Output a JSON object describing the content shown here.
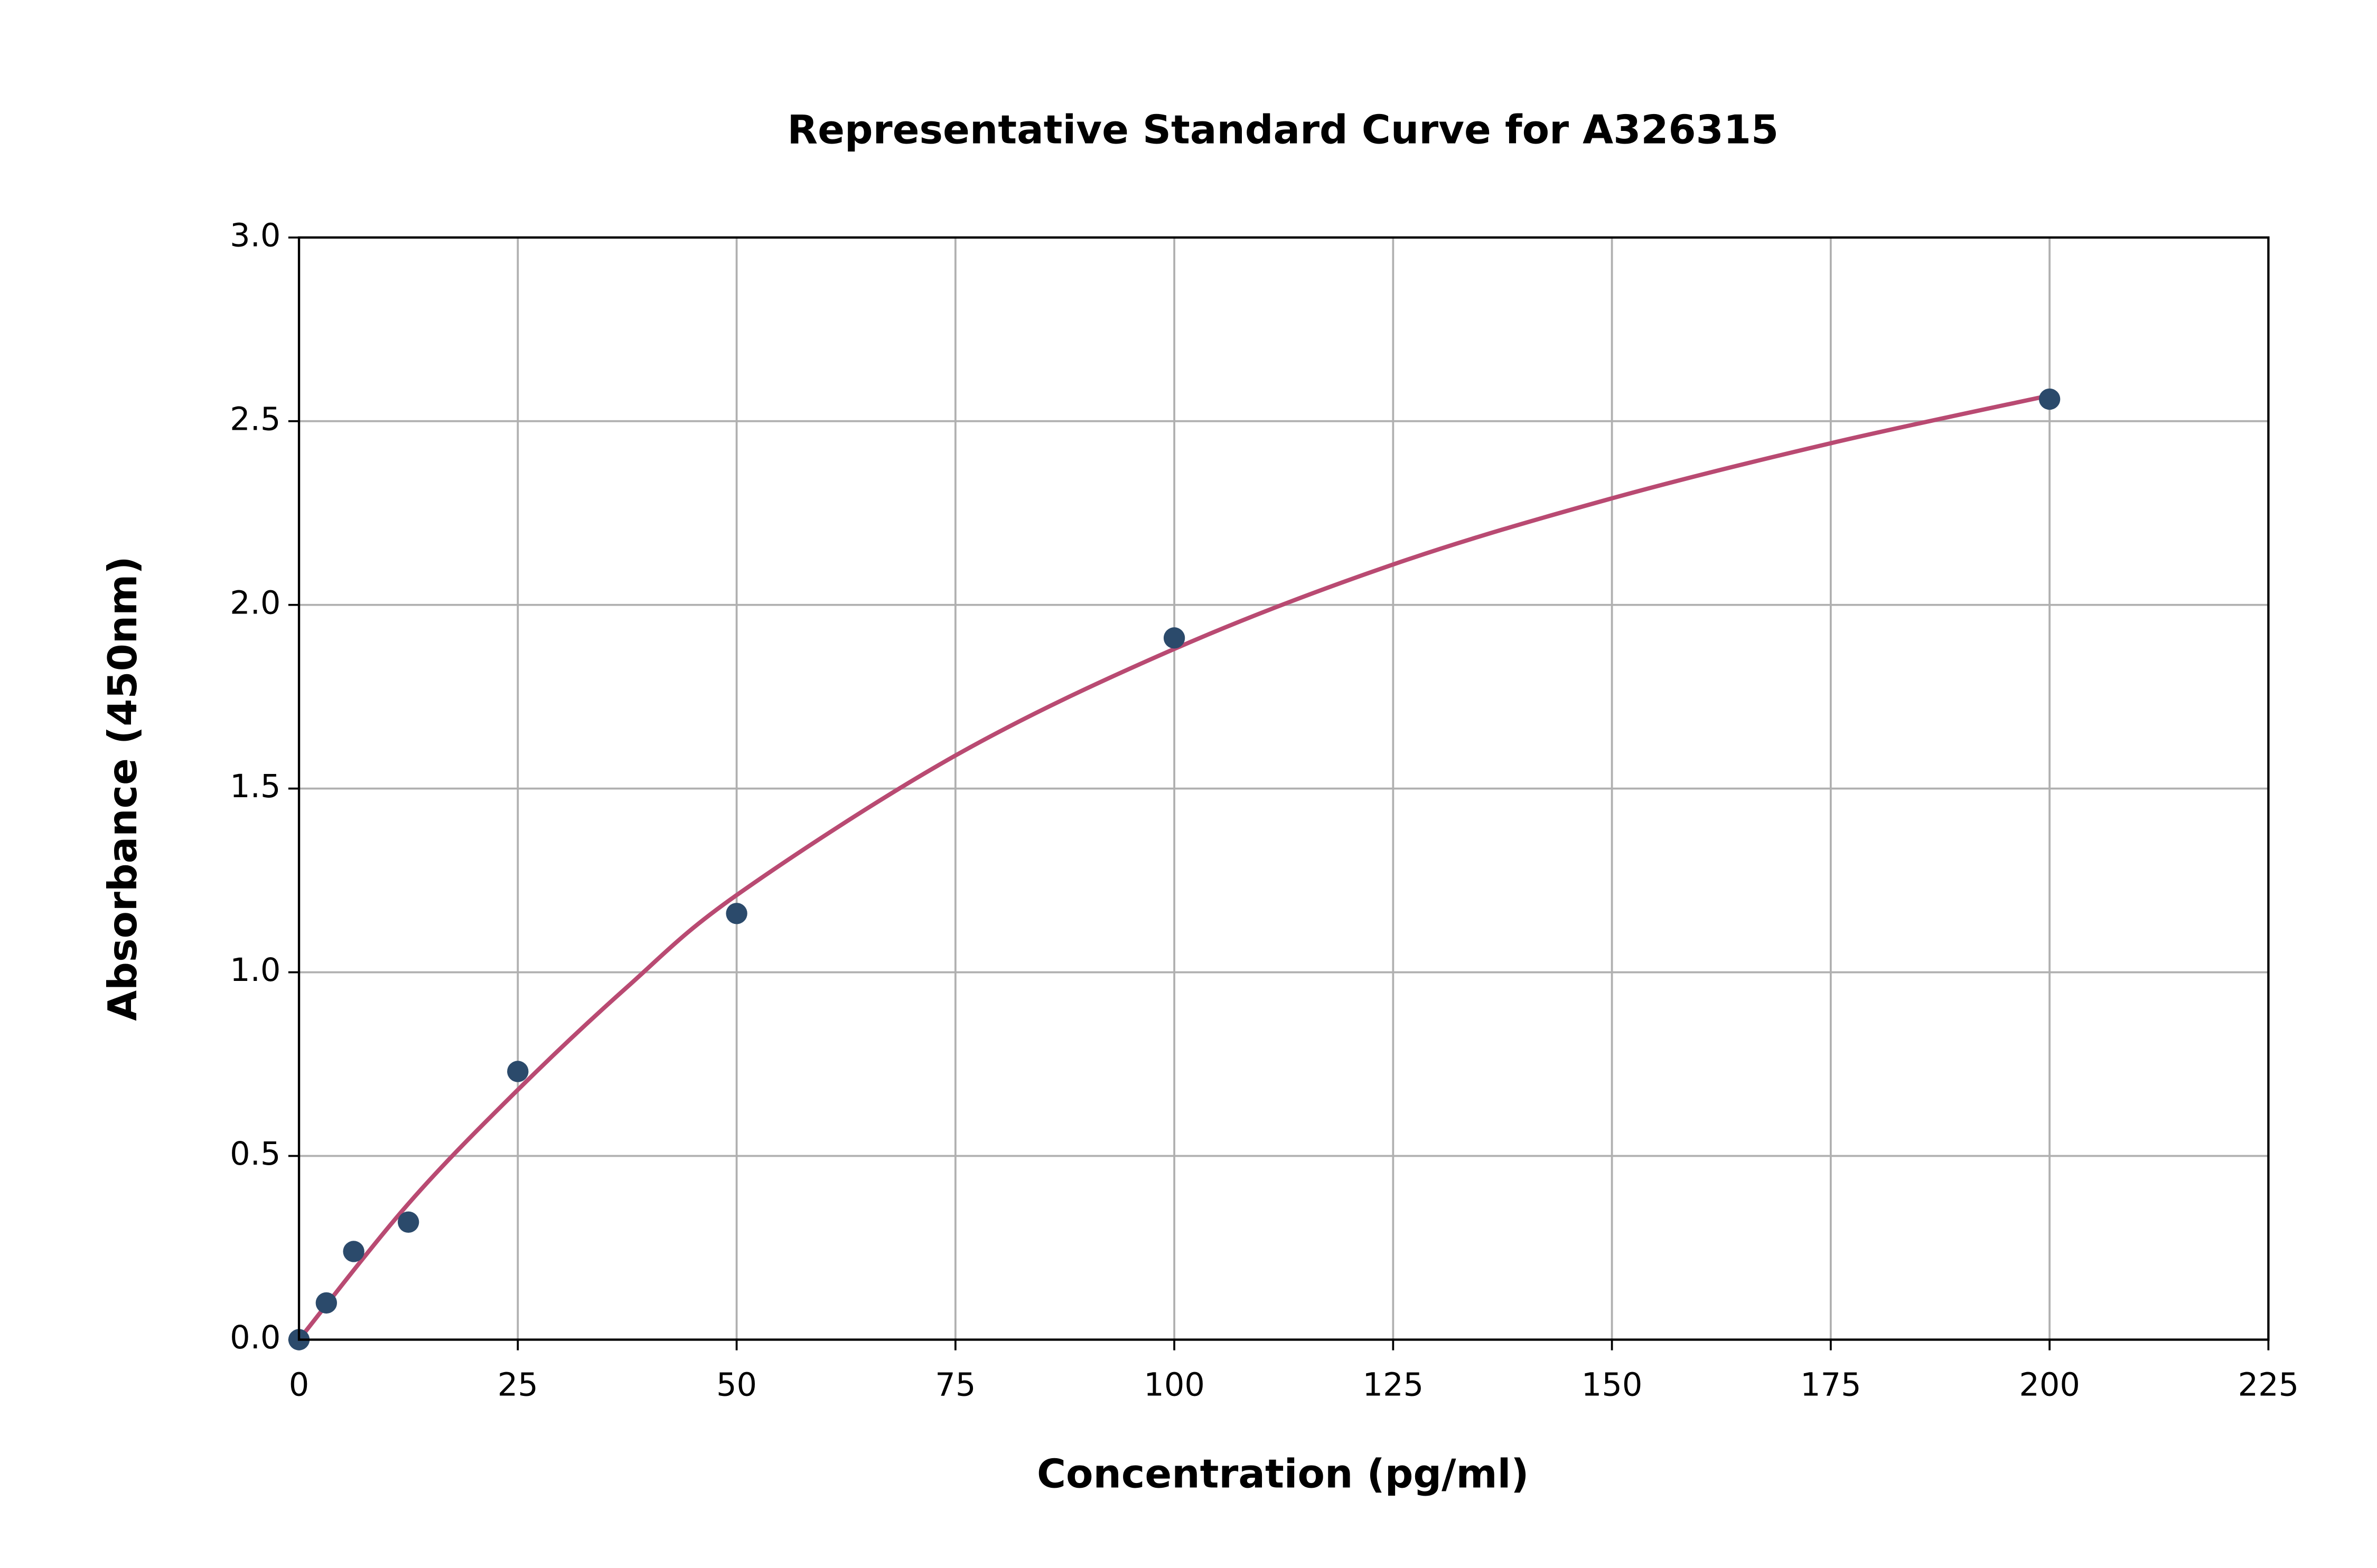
{
  "chart_data": {
    "type": "scatter",
    "title": "Representative Standard Curve for A326315",
    "x_label": "Concentration (pg/ml)",
    "y_label": "Absorbance (450nm)",
    "xlim": [
      0,
      225
    ],
    "ylim": [
      0,
      3
    ],
    "xticks": [
      0,
      25,
      50,
      75,
      100,
      125,
      150,
      175,
      200,
      225
    ],
    "yticks": [
      {
        "value": 0,
        "label": "0.0"
      },
      0.5,
      {
        "value": 1,
        "label": "1.0"
      },
      1.5,
      {
        "value": 2,
        "label": "2.0"
      },
      2.5,
      {
        "value": 3,
        "label": "3.0"
      }
    ],
    "grid": true,
    "series": [
      {
        "type": "scatter",
        "color": "#2b4a6b",
        "x": [
          0,
          3.125,
          6.25,
          12.5,
          25,
          50,
          100,
          200
        ],
        "values": [
          0.0,
          0.1,
          0.24,
          0.32,
          0.73,
          1.16,
          1.91,
          2.56
        ]
      },
      {
        "type": "line",
        "color": "#b94a72",
        "x": [
          0,
          12.5,
          25,
          37.5,
          50,
          75,
          100,
          125,
          150,
          175,
          200
        ],
        "values": [
          0.0,
          0.37,
          0.68,
          0.96,
          1.21,
          1.59,
          1.88,
          2.11,
          2.29,
          2.44,
          2.57
        ]
      }
    ]
  }
}
